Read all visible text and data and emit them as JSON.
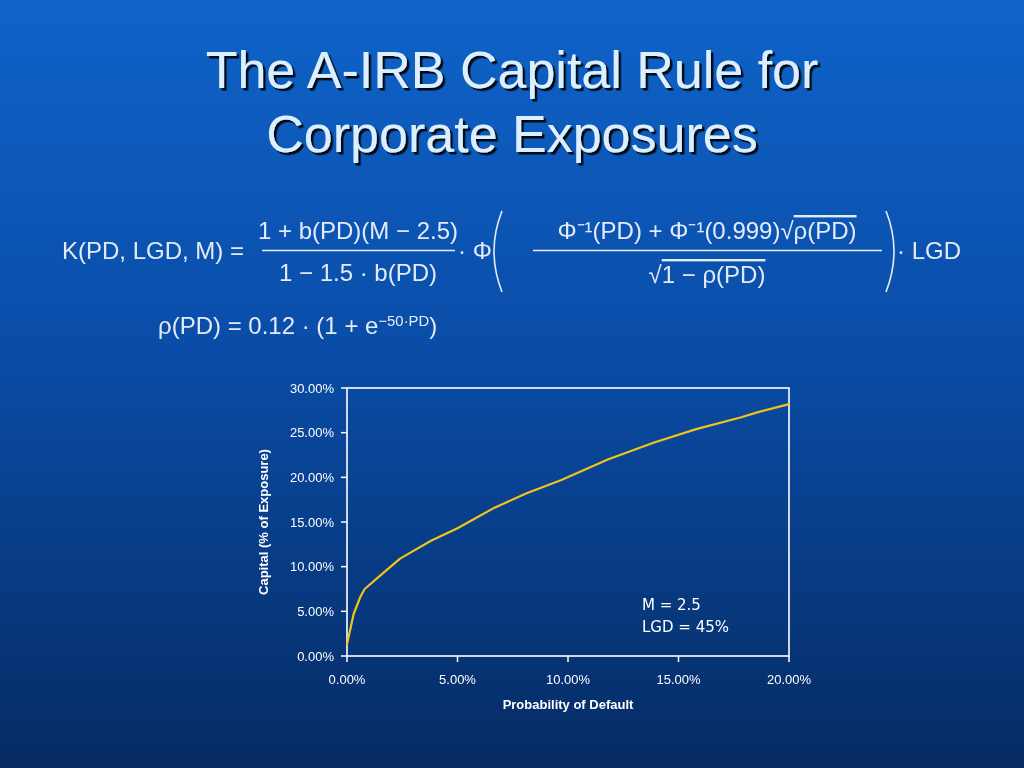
{
  "chart_data": {
    "type": "line",
    "title": "The A-IRB Capital Rule for Corporate Exposures",
    "xlabel": "Probability of Default",
    "ylabel": "Capital (% of Exposure)",
    "x": [
      0,
      0.3,
      0.6,
      0.8,
      1.5,
      2.4,
      3.8,
      5.0,
      6.6,
      8.1,
      9.7,
      11.8,
      13.9,
      15.8,
      17.8,
      18.6,
      20
    ],
    "series": [
      {
        "color": "#f0c419",
        "values": [
          1.3,
          4.7,
          6.6,
          7.5,
          9.0,
          10.9,
          12.9,
          14.3,
          16.5,
          18.2,
          19.7,
          22.0,
          23.9,
          25.4,
          26.7,
          27.3,
          28.2
        ]
      }
    ],
    "xlim": [
      0,
      20
    ],
    "ylim": [
      0,
      30
    ],
    "xticks": [
      {
        "value": 0,
        "label": "0.00%"
      },
      {
        "value": 5,
        "label": "5.00%"
      },
      {
        "value": 10,
        "label": "10.00%"
      },
      {
        "value": 15,
        "label": "15.00%"
      },
      {
        "value": 20,
        "label": "20.00%"
      }
    ],
    "yticks": [
      {
        "value": 0,
        "label": "0.00%"
      },
      {
        "value": 5,
        "label": "5.00%"
      },
      {
        "value": 10,
        "label": "10.00%"
      },
      {
        "value": 15,
        "label": "15.00%"
      },
      {
        "value": 20,
        "label": "20.00%"
      },
      {
        "value": 25,
        "label": "25.00%"
      },
      {
        "value": 30,
        "label": "30.00%"
      }
    ],
    "annotations": [
      "K(PD, LGD, M) =",
      "1 + b(PD)(M − 2.5)",
      "1 − 1.5 · b(PD)",
      "· Φ",
      "Φ⁻¹(PD) + Φ⁻¹(0.999)√ρ(PD)",
      "√1 − ρ(PD)",
      "· LGD",
      "ρ(PD) = 0.12 · (1 + e$^{−50·PD}$)",
      "M = 2.5",
      "LGD = 45%"
    ]
  }
}
